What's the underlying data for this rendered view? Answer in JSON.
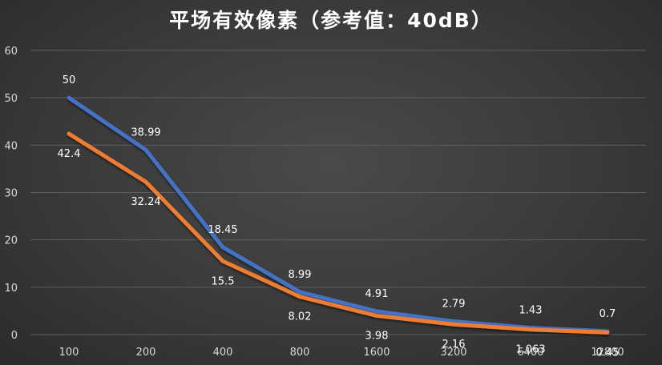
{
  "chart_data": {
    "type": "line",
    "title": "平场有效像素（参考值：40dB）",
    "xlabel": "",
    "ylabel": "",
    "categories": [
      "100",
      "200",
      "400",
      "800",
      "1600",
      "3200",
      "6400",
      "12800"
    ],
    "ylim": [
      0,
      60
    ],
    "yticks": [
      "0",
      "10",
      "20",
      "30",
      "40",
      "50",
      "60"
    ],
    "grid": true,
    "legend": "none",
    "series": [
      {
        "color": "#4472c4",
        "values": [
          50,
          38.99,
          18.45,
          8.99,
          4.91,
          2.79,
          1.43,
          0.7
        ],
        "labels": [
          "50",
          "38.99",
          "18.45",
          "8.99",
          "4.91",
          "2.79",
          "1.43",
          "0.7"
        ]
      },
      {
        "color": "#ed7d31",
        "values": [
          42.4,
          32.24,
          15.5,
          8.02,
          3.98,
          2.16,
          1.063,
          0.45
        ],
        "labels": [
          "42.4",
          "32.24",
          "15.5",
          "8.02",
          "3.98",
          "2.16",
          "1.063",
          "0.45"
        ]
      }
    ]
  }
}
